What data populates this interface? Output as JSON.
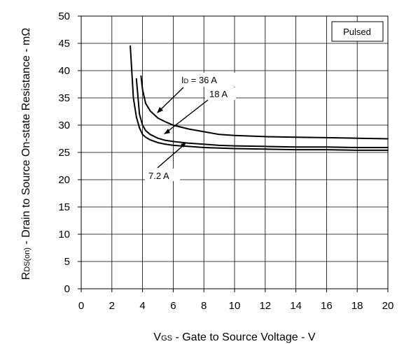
{
  "chart_data": {
    "type": "line",
    "xlabel": {
      "main": "V",
      "sub": "GS",
      "rest": " - Gate to Source Voltage - V"
    },
    "ylabel": {
      "main": "R",
      "sub": "DS(on)",
      "rest": " - Drain to Source On-state Resistance - mΩ"
    },
    "xlim": [
      0,
      20
    ],
    "ylim": [
      0,
      50
    ],
    "x_ticks": [
      "0",
      "2",
      "4",
      "6",
      "8",
      "10",
      "12",
      "14",
      "16",
      "18",
      "20"
    ],
    "y_ticks": [
      "0",
      "5",
      "10",
      "15",
      "20",
      "25",
      "30",
      "35",
      "40",
      "45",
      "50"
    ],
    "grid": true,
    "legend_box": "Pulsed",
    "series": [
      {
        "name": "ID = 36 A",
        "x": [
          3.9,
          4.0,
          4.2,
          4.5,
          5.0,
          5.5,
          6.0,
          7.0,
          8.0,
          9.0,
          10.0,
          12.0,
          14.0,
          16.0,
          18.0,
          20.0
        ],
        "y": [
          39.0,
          36.5,
          34.0,
          32.6,
          31.3,
          30.6,
          30.0,
          29.3,
          28.8,
          28.3,
          28.1,
          27.9,
          27.8,
          27.7,
          27.6,
          27.5
        ]
      },
      {
        "name": "18 A",
        "x": [
          3.6,
          3.8,
          4.0,
          4.2,
          4.5,
          5.0,
          5.5,
          6.0,
          7.0,
          8.0,
          9.0,
          10.0,
          12.0,
          14.0,
          16.0,
          18.0,
          20.0
        ],
        "y": [
          38.5,
          32.0,
          30.0,
          29.0,
          28.3,
          27.6,
          27.2,
          27.0,
          26.7,
          26.5,
          26.3,
          26.2,
          26.1,
          26.0,
          26.0,
          25.9,
          25.9
        ]
      },
      {
        "name": "7.2 A",
        "x": [
          3.2,
          3.4,
          3.6,
          3.8,
          4.0,
          4.2,
          4.5,
          5.0,
          5.5,
          6.0,
          7.0,
          8.0,
          9.0,
          10.0,
          12.0,
          14.0,
          16.0,
          18.0,
          20.0
        ],
        "y": [
          44.5,
          35.0,
          31.5,
          29.5,
          28.3,
          27.8,
          27.3,
          26.8,
          26.5,
          26.3,
          26.1,
          25.9,
          25.8,
          25.7,
          25.6,
          25.5,
          25.5,
          25.4,
          25.4
        ]
      }
    ],
    "annotations": [
      {
        "id": "id36",
        "main": "I",
        "sub": "D",
        "rest": "  = 36 A",
        "points_to": "ID = 36 A"
      },
      {
        "id": "id18",
        "text": "18 A",
        "points_to": "18 A"
      },
      {
        "id": "id72",
        "text": "7.2 A",
        "points_to": "7.2 A"
      }
    ]
  }
}
